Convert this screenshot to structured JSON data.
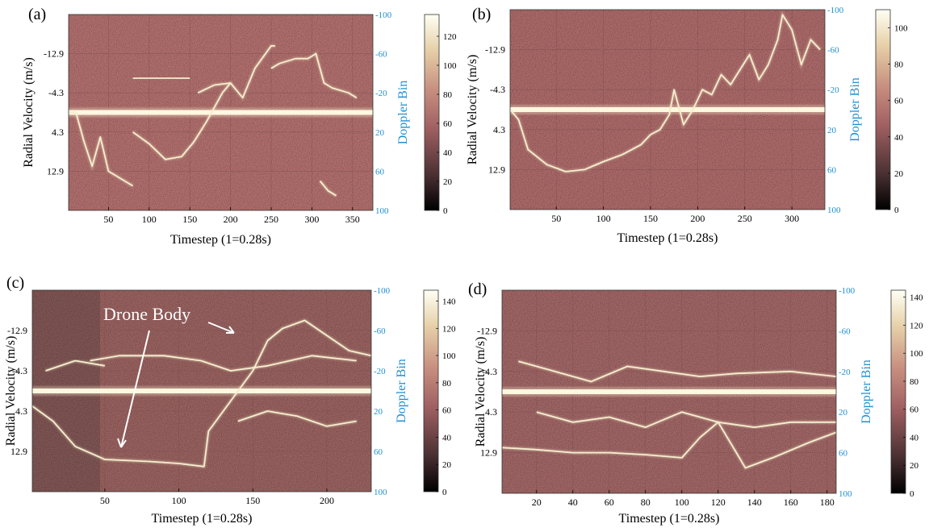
{
  "colors": {
    "background_low": "#3a2a2c",
    "background": "#b07070",
    "ridge": "#f4ecc8",
    "right_axis": "#1f8fd0"
  },
  "chart_data": [
    {
      "type": "heatmap",
      "panel_label": "(a)",
      "xlabel": "Timestep (1=0.28s)",
      "ylabel": "Radial Velocity (m/s)",
      "y2label": "Doppler Bin",
      "xlim": [
        1,
        375
      ],
      "xticks": [
        50,
        100,
        150,
        200,
        250,
        300,
        350
      ],
      "yticks": [
        -12.9,
        -4.3,
        4.3,
        12.9
      ],
      "y2lim": [
        -100,
        100
      ],
      "y2ticks": [
        -100,
        -60,
        -20,
        20,
        60,
        100
      ],
      "colorbar_ticks": [
        0,
        20,
        40,
        60,
        80,
        100,
        120
      ],
      "colorbar_max": 135,
      "series": [
        {
          "values": [
            [
              1,
              0
            ],
            [
              10,
              0
            ],
            [
              20,
              30
            ],
            [
              30,
              55
            ],
            [
              40,
              25
            ],
            [
              50,
              60
            ],
            [
              60,
              65
            ],
            [
              80,
              75
            ]
          ]
        },
        {
          "values": [
            [
              80,
              20
            ],
            [
              100,
              32
            ],
            [
              120,
              48
            ],
            [
              140,
              45
            ],
            [
              155,
              30
            ],
            [
              170,
              10
            ],
            [
              190,
              -20
            ],
            [
              200,
              -30
            ],
            [
              215,
              -15
            ],
            [
              230,
              -45
            ],
            [
              250,
              -68
            ],
            [
              255,
              -68
            ]
          ]
        },
        {
          "values": [
            [
              250,
              -45
            ],
            [
              260,
              -50
            ],
            [
              280,
              -55
            ],
            [
              295,
              -55
            ],
            [
              305,
              -60
            ],
            [
              315,
              -30
            ],
            [
              325,
              -25
            ],
            [
              345,
              -20
            ],
            [
              355,
              -15
            ]
          ]
        },
        {
          "values": [
            [
              80,
              -35
            ],
            [
              150,
              -35
            ]
          ]
        },
        {
          "values": [
            [
              160,
              -20
            ],
            [
              180,
              -28
            ],
            [
              200,
              -30
            ]
          ]
        },
        {
          "values": [
            [
              310,
              70
            ],
            [
              320,
              80
            ],
            [
              330,
              85
            ]
          ]
        }
      ]
    },
    {
      "type": "heatmap",
      "panel_label": "(b)",
      "xlabel": "Timestep (1=0.28s)",
      "ylabel": "Radial Velocity (m/s)",
      "y2label": "Doppler Bin",
      "xlim": [
        1,
        335
      ],
      "xticks": [
        50,
        100,
        150,
        200,
        250,
        300
      ],
      "yticks": [
        -12.9,
        -4.3,
        4.3,
        12.9
      ],
      "y2lim": [
        -100,
        100
      ],
      "y2ticks": [
        -100,
        -60,
        -20,
        20,
        60,
        100
      ],
      "colorbar_ticks": [
        0,
        20,
        40,
        60,
        80,
        100
      ],
      "colorbar_max": 110,
      "series": [
        {
          "values": [
            [
              1,
              0
            ],
            [
              10,
              10
            ],
            [
              20,
              40
            ],
            [
              40,
              55
            ],
            [
              60,
              62
            ],
            [
              80,
              60
            ],
            [
              100,
              52
            ],
            [
              120,
              45
            ],
            [
              140,
              35
            ],
            [
              150,
              25
            ],
            [
              160,
              20
            ],
            [
              170,
              5
            ],
            [
              175,
              -20
            ],
            [
              185,
              15
            ],
            [
              195,
              0
            ],
            [
              205,
              -20
            ],
            [
              215,
              -15
            ],
            [
              225,
              -35
            ],
            [
              235,
              -25
            ],
            [
              245,
              -40
            ],
            [
              255,
              -55
            ],
            [
              265,
              -30
            ],
            [
              275,
              -45
            ],
            [
              285,
              -70
            ],
            [
              290,
              -95
            ],
            [
              300,
              -80
            ],
            [
              310,
              -45
            ],
            [
              320,
              -70
            ],
            [
              330,
              -60
            ]
          ]
        }
      ]
    },
    {
      "type": "heatmap",
      "panel_label": "(c)",
      "xlabel": "Timestep (1=0.28s)",
      "ylabel": "Radial Velocity (m/s)",
      "y2label": "Doppler Bin",
      "xlim": [
        1,
        230
      ],
      "xticks": [
        50,
        100,
        150,
        200
      ],
      "yticks": [
        -12.9,
        -4.3,
        4.3,
        12.9
      ],
      "y2lim": [
        -100,
        100
      ],
      "y2ticks": [
        -100,
        -60,
        -20,
        20,
        60,
        100
      ],
      "colorbar_ticks": [
        0,
        20,
        40,
        60,
        80,
        100,
        120,
        140
      ],
      "colorbar_max": 148,
      "annotation": "Drone Body",
      "series": [
        {
          "values": [
            [
              1,
              15
            ],
            [
              15,
              30
            ],
            [
              30,
              55
            ],
            [
              50,
              68
            ],
            [
              80,
              70
            ],
            [
              100,
              72
            ],
            [
              117,
              75
            ],
            [
              120,
              40
            ],
            [
              135,
              10
            ],
            [
              150,
              -20
            ],
            [
              160,
              -50
            ],
            [
              170,
              -62
            ],
            [
              185,
              -70
            ],
            [
              200,
              -55
            ],
            [
              215,
              -40
            ],
            [
              230,
              -35
            ]
          ]
        },
        {
          "values": [
            [
              40,
              -30
            ],
            [
              60,
              -35
            ],
            [
              90,
              -35
            ],
            [
              115,
              -30
            ],
            [
              135,
              -20
            ],
            [
              160,
              -25
            ],
            [
              190,
              -35
            ],
            [
              220,
              -30
            ]
          ]
        },
        {
          "values": [
            [
              10,
              -20
            ],
            [
              30,
              -30
            ],
            [
              50,
              -25
            ]
          ]
        },
        {
          "values": [
            [
              140,
              30
            ],
            [
              160,
              20
            ],
            [
              180,
              25
            ],
            [
              200,
              35
            ],
            [
              220,
              30
            ]
          ]
        }
      ]
    },
    {
      "type": "heatmap",
      "panel_label": "(d)",
      "xlabel": "Timestep (1=0.28s)",
      "ylabel": "Radial Velocity (m/s)",
      "y2label": "Doppler Bin",
      "xlim": [
        1,
        185
      ],
      "xticks": [
        20,
        40,
        60,
        80,
        100,
        120,
        140,
        160,
        180
      ],
      "yticks": [
        -12.9,
        -4.3,
        4.3,
        12.9
      ],
      "y2lim": [
        -100,
        100
      ],
      "y2ticks": [
        -100,
        -60,
        -20,
        20,
        60,
        100
      ],
      "colorbar_ticks": [
        0,
        20,
        40,
        60,
        80,
        100,
        120,
        140
      ],
      "colorbar_max": 145,
      "series": [
        {
          "values": [
            [
              1,
              55
            ],
            [
              20,
              57
            ],
            [
              40,
              60
            ],
            [
              60,
              60
            ],
            [
              80,
              62
            ],
            [
              100,
              65
            ],
            [
              110,
              45
            ],
            [
              120,
              30
            ],
            [
              130,
              60
            ],
            [
              135,
              75
            ],
            [
              150,
              65
            ],
            [
              170,
              50
            ],
            [
              185,
              40
            ]
          ]
        },
        {
          "values": [
            [
              10,
              -30
            ],
            [
              30,
              -20
            ],
            [
              50,
              -10
            ],
            [
              70,
              -25
            ],
            [
              90,
              -20
            ],
            [
              110,
              -15
            ],
            [
              130,
              -18
            ],
            [
              160,
              -20
            ],
            [
              185,
              -15
            ]
          ]
        },
        {
          "values": [
            [
              20,
              20
            ],
            [
              40,
              30
            ],
            [
              60,
              25
            ],
            [
              80,
              35
            ],
            [
              100,
              20
            ],
            [
              120,
              30
            ],
            [
              140,
              35
            ],
            [
              160,
              30
            ],
            [
              185,
              30
            ]
          ]
        }
      ]
    }
  ]
}
